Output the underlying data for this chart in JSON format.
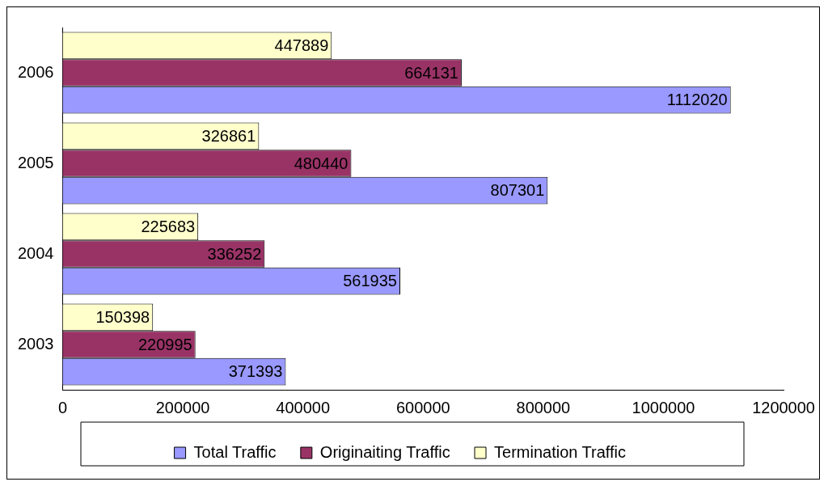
{
  "chart_data": {
    "type": "bar",
    "orientation": "horizontal",
    "categories": [
      "2006",
      "2005",
      "2004",
      "2003"
    ],
    "series": [
      {
        "name": "Total Traffic",
        "color": "#9999ff",
        "values": [
          1112020,
          807301,
          561935,
          371393
        ]
      },
      {
        "name": "Originaiting Traffic",
        "color": "#993366",
        "values": [
          664131,
          480440,
          336252,
          220995
        ]
      },
      {
        "name": "Termination Traffic",
        "color": "#ffffcc",
        "values": [
          447889,
          326861,
          225683,
          150398
        ]
      }
    ],
    "xlim": [
      0,
      1200000
    ],
    "xticks": [
      0,
      200000,
      400000,
      600000,
      800000,
      1000000,
      1200000
    ],
    "grid": false,
    "legend": "bottom",
    "data_labels": true
  }
}
